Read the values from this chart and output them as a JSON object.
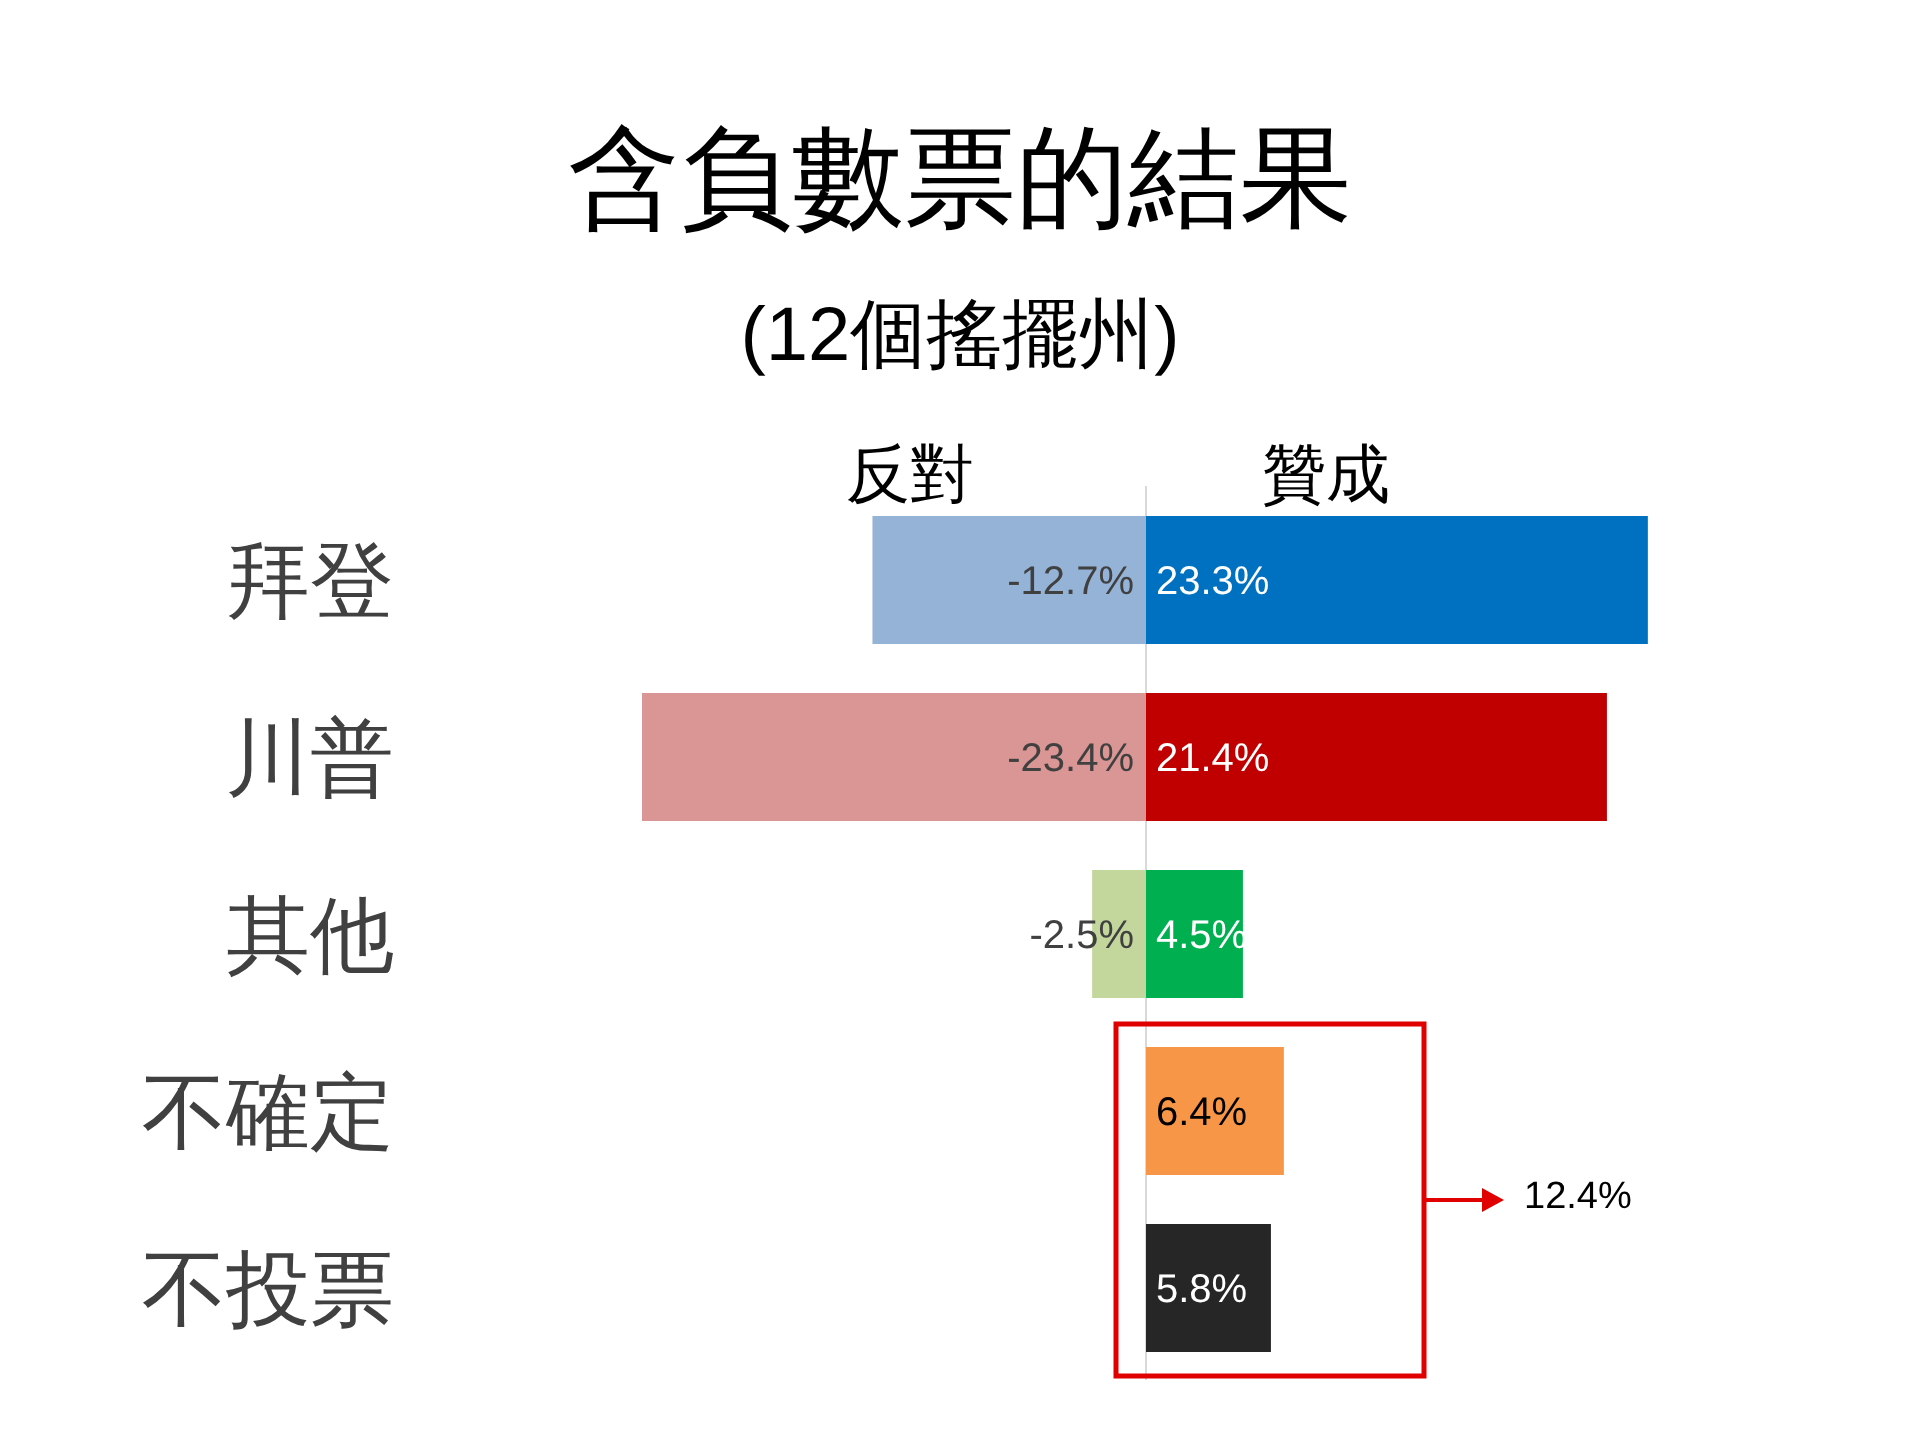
{
  "chart_data": {
    "type": "bar",
    "orientation": "horizontal",
    "title": "含負數票的結果",
    "subtitle": "(12個搖擺州)",
    "categories": [
      "拜登",
      "川普",
      "其他",
      "不確定",
      "不投票"
    ],
    "series": [
      {
        "name": "反對",
        "colors": [
          "#95b3d7",
          "#d99694",
          "#c3d69b",
          null,
          null
        ],
        "values": [
          -12.7,
          -23.4,
          -2.5,
          null,
          null
        ],
        "value_labels": [
          "-12.7%",
          "-23.4%",
          "-2.5%",
          null,
          null
        ]
      },
      {
        "name": "贊成",
        "colors": [
          "#0070c0",
          "#c00000",
          "#00b050",
          "#f79646",
          "#262626"
        ],
        "values": [
          23.3,
          21.4,
          4.5,
          6.4,
          5.8
        ],
        "value_labels": [
          "23.3%",
          "21.4%",
          "4.5%",
          "6.4%",
          "5.8%"
        ]
      }
    ],
    "stacked": true,
    "annotations": [
      "12.4%"
    ]
  }
}
